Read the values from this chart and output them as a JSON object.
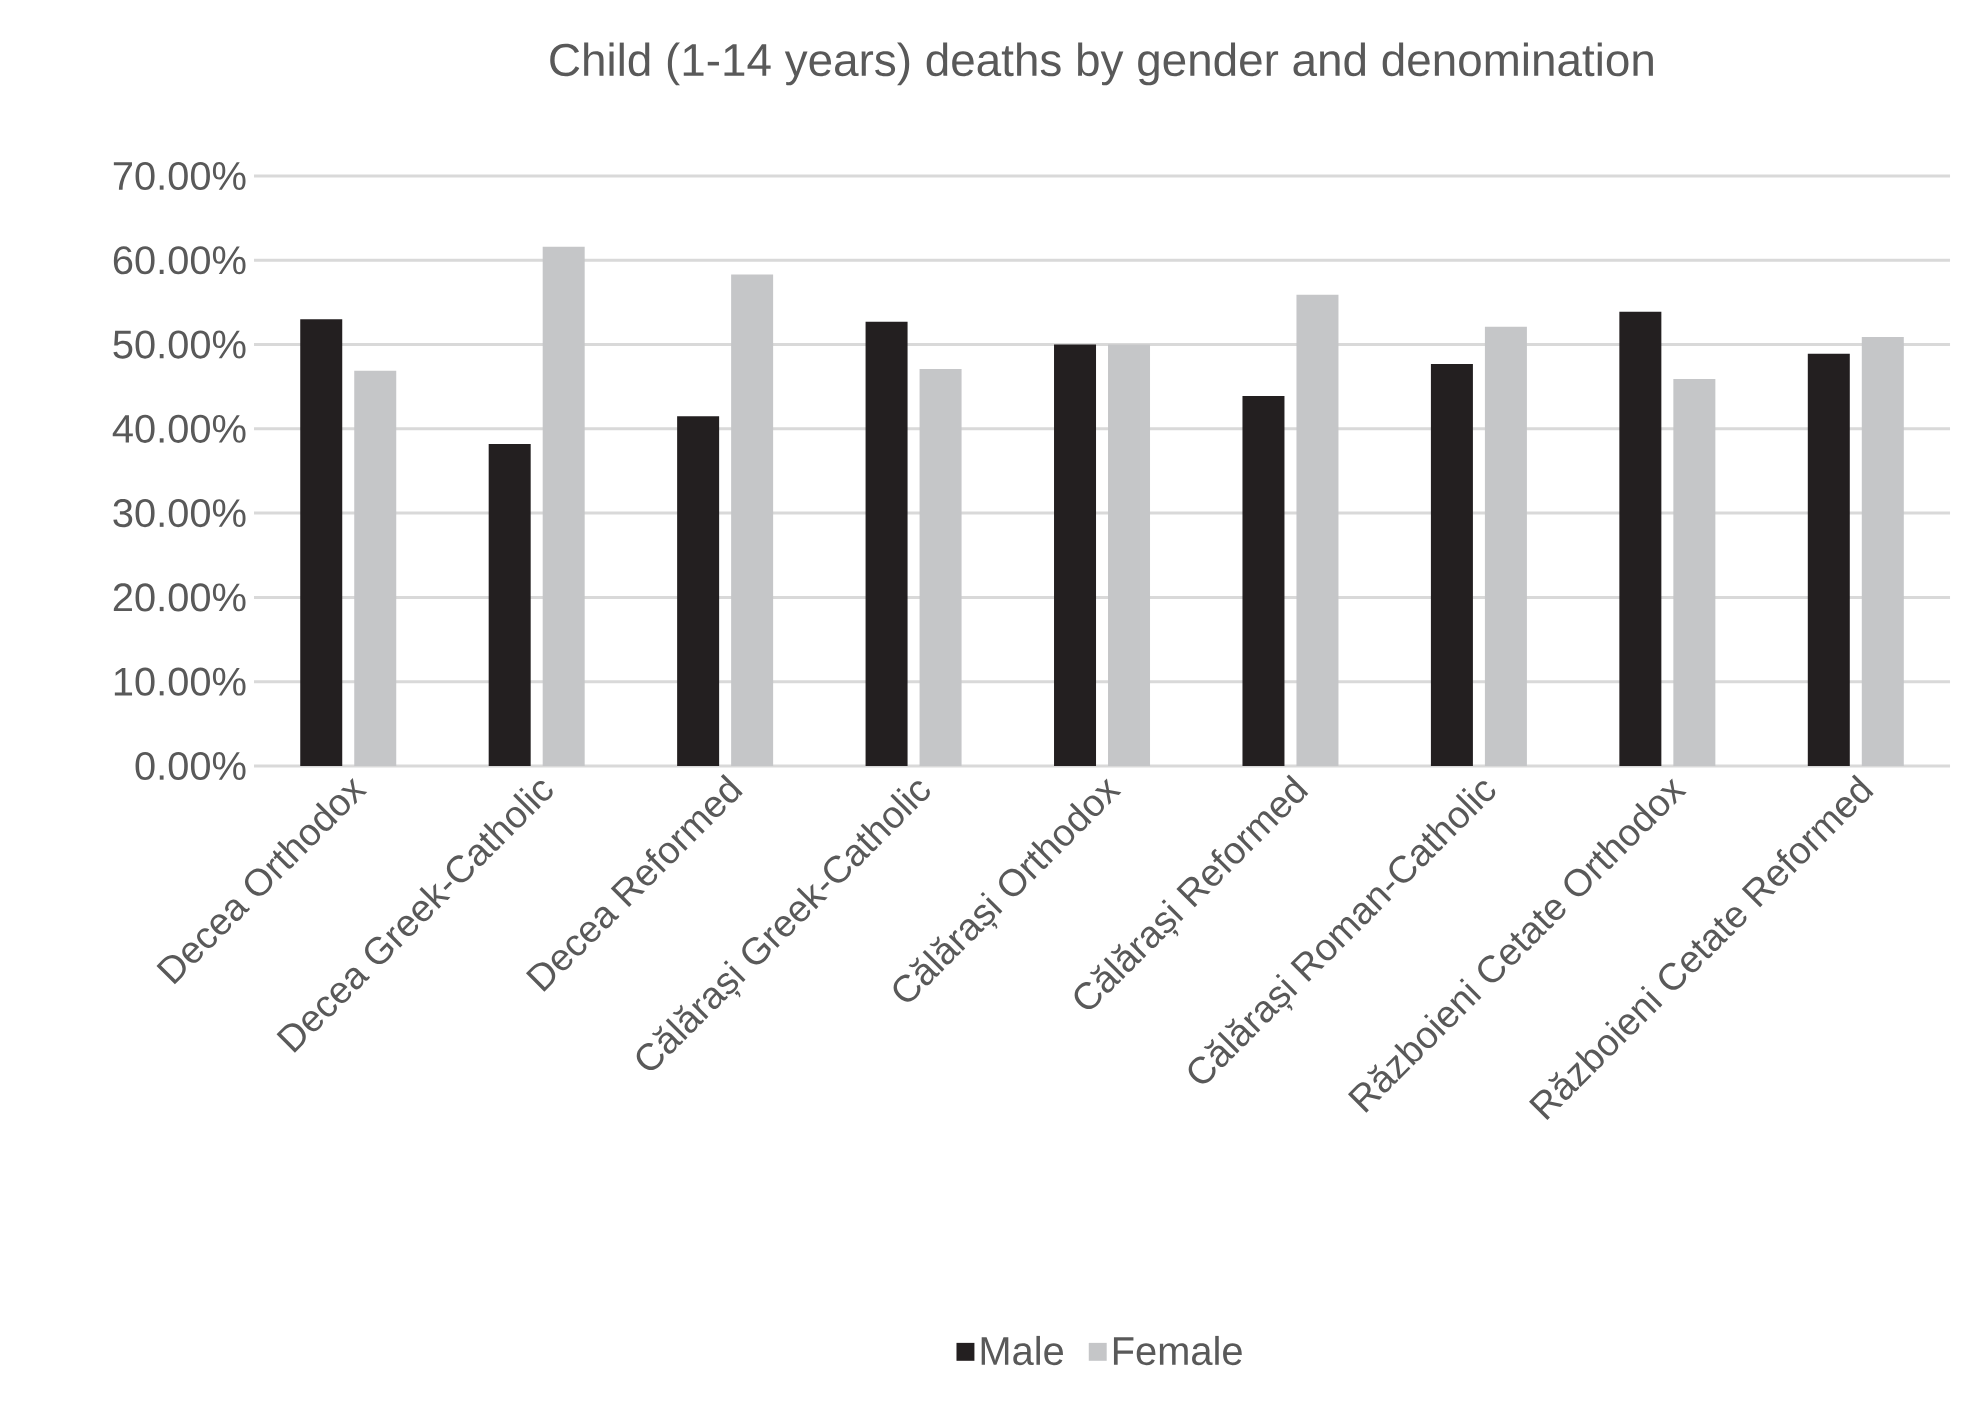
{
  "chart_data": {
    "type": "bar",
    "title": "Child (1-14 years) deaths by gender and denomination",
    "categories": [
      "Decea  Orthodox",
      "Decea Greek-Catholic",
      "Decea Reformed",
      "Călărași Greek-Catholic",
      "Călărași Orthodox",
      "Călărași Reformed",
      "Călărași Roman-Catholic",
      "Războieni Cetate Orthodox",
      "Războieni Cetate Reformed"
    ],
    "series": [
      {
        "name": "Male",
        "color": "#231f20",
        "values": [
          53.0,
          38.2,
          41.5,
          52.7,
          50.0,
          43.9,
          47.7,
          53.9,
          48.9
        ]
      },
      {
        "name": "Female",
        "color": "#c5c6c8",
        "values": [
          46.9,
          61.6,
          58.3,
          47.1,
          50.0,
          55.9,
          52.1,
          45.9,
          50.9
        ]
      }
    ],
    "ylim": [
      0,
      70
    ],
    "yticks": [
      {
        "value": 0,
        "label": "0.00%"
      },
      {
        "value": 10,
        "label": "10.00%"
      },
      {
        "value": 20,
        "label": "20.00%"
      },
      {
        "value": 30,
        "label": "30.00%"
      },
      {
        "value": 40,
        "label": "40.00%"
      },
      {
        "value": 50,
        "label": "50.00%"
      },
      {
        "value": 60,
        "label": "60.00%"
      },
      {
        "value": 70,
        "label": "70.00%"
      }
    ],
    "grid": "y",
    "legend": "bottom"
  }
}
